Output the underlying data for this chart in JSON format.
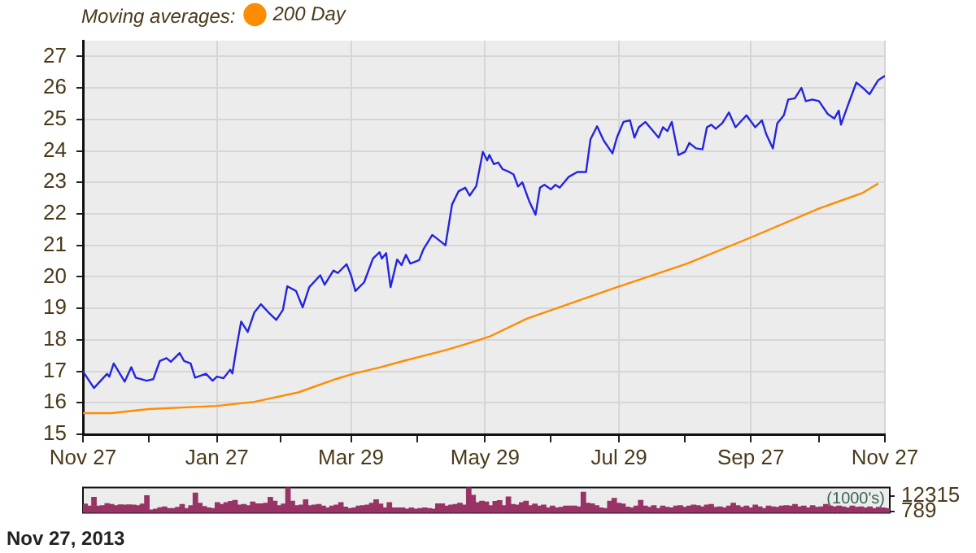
{
  "chart_data": [
    {
      "type": "line",
      "legend_title": "Moving averages:",
      "legend": "top left",
      "grid": true,
      "xlim": [
        "2012-11-27",
        "2013-11-27"
      ],
      "xticks": [
        {
          "value": "2012-11-27",
          "label": "Nov 27"
        },
        {
          "value": "2012-12-27",
          "label": null
        },
        {
          "value": "2013-01-27",
          "label": "Jan 27"
        },
        {
          "value": "2013-02-25",
          "label": null
        },
        {
          "value": "2013-03-29",
          "label": "Mar 29"
        },
        {
          "value": "2013-04-28",
          "label": null
        },
        {
          "value": "2013-05-29",
          "label": "May 29"
        },
        {
          "value": "2013-06-28",
          "label": null
        },
        {
          "value": "2013-07-29",
          "label": "Jul 29"
        },
        {
          "value": "2013-08-28",
          "label": null
        },
        {
          "value": "2013-09-27",
          "label": "Sep 27"
        },
        {
          "value": "2013-10-28",
          "label": null
        },
        {
          "value": "2013-11-27",
          "label": "Nov 27"
        }
      ],
      "ylim": [
        15,
        27.5
      ],
      "yticks": [
        15,
        16,
        17,
        18,
        19,
        20,
        21,
        22,
        23,
        24,
        25,
        26,
        27
      ],
      "series": [
        {
          "color": "#2424e0",
          "x": [
            "2012-11-27",
            "2012-12-02",
            "2012-12-08",
            "2012-12-09",
            "2012-12-11",
            "2012-12-16",
            "2012-12-19",
            "2012-12-21",
            "2012-12-26",
            "2012-12-29",
            "2013-01-01",
            "2013-01-04",
            "2013-01-06",
            "2013-01-10",
            "2013-01-12",
            "2013-01-15",
            "2013-01-17",
            "2013-01-22",
            "2013-01-25",
            "2013-01-27",
            "2013-01-30",
            "2013-02-02",
            "2013-02-03",
            "2013-02-05",
            "2013-02-07",
            "2013-02-10",
            "2013-02-13",
            "2013-02-16",
            "2013-02-20",
            "2013-02-23",
            "2013-02-26",
            "2013-02-28",
            "2013-03-04",
            "2013-03-07",
            "2013-03-10",
            "2013-03-15",
            "2013-03-17",
            "2013-03-21",
            "2013-03-23",
            "2013-03-27",
            "2013-03-29",
            "2013-03-31",
            "2013-04-04",
            "2013-04-08",
            "2013-04-11",
            "2013-04-12",
            "2013-04-14",
            "2013-04-16",
            "2013-04-19",
            "2013-04-21",
            "2013-04-23",
            "2013-04-25",
            "2013-04-29",
            "2013-05-01",
            "2013-05-05",
            "2013-05-11",
            "2013-05-14",
            "2013-05-17",
            "2013-05-20",
            "2013-05-22",
            "2013-05-25",
            "2013-05-28",
            "2013-05-30",
            "2013-05-31",
            "2013-06-02",
            "2013-06-04",
            "2013-06-06",
            "2013-06-09",
            "2013-06-11",
            "2013-06-13",
            "2013-06-15",
            "2013-06-18",
            "2013-06-21",
            "2013-06-23",
            "2013-06-25",
            "2013-06-28",
            "2013-06-30",
            "2013-07-02",
            "2013-07-06",
            "2013-07-10",
            "2013-07-14",
            "2013-07-16",
            "2013-07-19",
            "2013-07-22",
            "2013-07-26",
            "2013-07-28",
            "2013-07-31",
            "2013-08-03",
            "2013-08-05",
            "2013-08-07",
            "2013-08-10",
            "2013-08-13",
            "2013-08-16",
            "2013-08-18",
            "2013-08-20",
            "2013-08-22",
            "2013-08-25",
            "2013-08-28",
            "2013-08-30",
            "2013-09-02",
            "2013-09-05",
            "2013-09-07",
            "2013-09-09",
            "2013-09-11",
            "2013-09-14",
            "2013-09-17",
            "2013-09-20",
            "2013-09-25",
            "2013-09-29",
            "2013-10-02",
            "2013-10-04",
            "2013-10-07",
            "2013-10-09",
            "2013-10-12",
            "2013-10-14",
            "2013-10-17",
            "2013-10-20",
            "2013-10-22",
            "2013-10-25",
            "2013-10-28",
            "2013-11-01",
            "2013-11-04",
            "2013-11-06",
            "2013-11-07",
            "2013-11-10",
            "2013-11-14",
            "2013-11-17",
            "2013-11-20",
            "2013-11-24",
            "2013-11-27"
          ],
          "values": [
            17.0,
            16.47,
            16.92,
            16.83,
            17.25,
            16.67,
            17.13,
            16.8,
            16.7,
            16.75,
            17.33,
            17.42,
            17.3,
            17.58,
            17.33,
            17.25,
            16.8,
            16.92,
            16.7,
            16.83,
            16.78,
            17.05,
            16.93,
            17.8,
            18.58,
            18.25,
            18.87,
            19.13,
            18.83,
            18.63,
            18.95,
            19.7,
            19.55,
            19.03,
            19.67,
            20.05,
            19.75,
            20.2,
            20.12,
            20.4,
            20.05,
            19.55,
            19.83,
            20.58,
            20.78,
            20.58,
            20.75,
            19.67,
            20.55,
            20.37,
            20.7,
            20.42,
            20.53,
            20.88,
            21.33,
            21.0,
            22.3,
            22.72,
            22.83,
            22.58,
            22.88,
            23.97,
            23.7,
            23.87,
            23.58,
            23.63,
            23.42,
            23.33,
            23.25,
            22.87,
            23.0,
            22.42,
            21.97,
            22.83,
            22.92,
            22.78,
            22.92,
            22.83,
            23.17,
            23.33,
            23.33,
            24.37,
            24.78,
            24.33,
            23.92,
            24.42,
            24.92,
            24.97,
            24.42,
            24.75,
            24.92,
            24.67,
            24.42,
            24.75,
            24.63,
            24.92,
            23.87,
            23.97,
            24.25,
            24.08,
            24.05,
            24.75,
            24.83,
            24.7,
            24.88,
            25.22,
            24.75,
            25.13,
            24.75,
            24.97,
            24.53,
            24.08,
            24.87,
            25.13,
            25.63,
            25.67,
            26.0,
            25.58,
            25.63,
            25.58,
            25.17,
            25.03,
            25.28,
            24.83,
            25.42,
            26.17,
            26.0,
            25.8,
            26.25,
            26.38
          ]
        },
        {
          "name": "200 Day",
          "color": "#ff8c00",
          "x": [
            "2012-11-27",
            "2012-12-10",
            "2012-12-27",
            "2013-01-27",
            "2013-02-13",
            "2013-03-05",
            "2013-03-22",
            "2013-03-30",
            "2013-04-11",
            "2013-04-22",
            "2013-05-11",
            "2013-05-23",
            "2013-05-31",
            "2013-06-17",
            "2013-07-28",
            "2013-08-29",
            "2013-09-27",
            "2013-10-28",
            "2013-11-17",
            "2013-11-24"
          ],
          "values": [
            15.67,
            15.67,
            15.8,
            15.9,
            16.03,
            16.33,
            16.75,
            16.92,
            17.12,
            17.33,
            17.67,
            17.92,
            18.1,
            18.67,
            19.67,
            20.42,
            21.25,
            22.17,
            22.67,
            22.97
          ]
        }
      ]
    },
    {
      "type": "bar",
      "ylabel": "(1000's)",
      "tick_labels": "y",
      "color": "#993366",
      "ylim": [
        0,
        18300
      ],
      "yticks": [
        789,
        12315
      ],
      "annotations": [
        "Nov 27, 2013"
      ],
      "categories": [
        null,
        null,
        null,
        null,
        null,
        null,
        null,
        null,
        null,
        null,
        null,
        null,
        null,
        null,
        null,
        null,
        null,
        null,
        null,
        null,
        null,
        null,
        null,
        null,
        null,
        null,
        null,
        null,
        null,
        null,
        null,
        null,
        null,
        null,
        null,
        null,
        null,
        null,
        null,
        null,
        null,
        null,
        null,
        null,
        null,
        null,
        null,
        null,
        null,
        null,
        null,
        null,
        null,
        null,
        null,
        null,
        null,
        null,
        null,
        null,
        null,
        null,
        null,
        null,
        null,
        null,
        null,
        null,
        null,
        null,
        null,
        null,
        null,
        null,
        null,
        null,
        null,
        null,
        null,
        null,
        null,
        null,
        null,
        null,
        null,
        null,
        null,
        null,
        null,
        null,
        null,
        null,
        null,
        null,
        null,
        null,
        null,
        null,
        null,
        null,
        null,
        null,
        null,
        null,
        null,
        null,
        null,
        null,
        null,
        null,
        null,
        null,
        null,
        null,
        null,
        null,
        null,
        null,
        null,
        null,
        null,
        null,
        null,
        null,
        null,
        null,
        null,
        null,
        null,
        null,
        null,
        null,
        null,
        null,
        null,
        null,
        null,
        null,
        null,
        null,
        null,
        null,
        null,
        null,
        null,
        null,
        null,
        null,
        null,
        null,
        null,
        null,
        null,
        null,
        null,
        null,
        null,
        null,
        null,
        null,
        null,
        null,
        null,
        null,
        null,
        null,
        null,
        null,
        null,
        null,
        null,
        null,
        null,
        null,
        null,
        null,
        null,
        null,
        null,
        null,
        null,
        null,
        null
      ],
      "values": [
        6200,
        4700,
        11100,
        4700,
        5100,
        6600,
        6000,
        5100,
        5700,
        5500,
        5700,
        5500,
        5100,
        6200,
        12300,
        1900,
        2500,
        3600,
        4200,
        3000,
        3000,
        3800,
        6000,
        3000,
        5100,
        14300,
        6800,
        4500,
        3400,
        3000,
        7200,
        6000,
        7200,
        8100,
        8900,
        5500,
        6000,
        5100,
        7700,
        6400,
        6400,
        6800,
        11100,
        8300,
        5100,
        6200,
        18200,
        8300,
        5100,
        5500,
        9400,
        5100,
        5500,
        6000,
        4700,
        3400,
        4700,
        5500,
        7200,
        4000,
        3000,
        3400,
        4700,
        5100,
        5500,
        6800,
        9400,
        6200,
        3400,
        7200,
        3400,
        3400,
        3400,
        2500,
        3400,
        2500,
        3000,
        3400,
        3000,
        2500,
        6400,
        6400,
        4700,
        5500,
        6000,
        6800,
        5500,
        18200,
        12600,
        7200,
        8300,
        7700,
        5100,
        8100,
        8700,
        5100,
        11500,
        6000,
        5500,
        7200,
        8300,
        5100,
        6200,
        4700,
        5500,
        3400,
        4700,
        3400,
        3800,
        4700,
        4700,
        4700,
        4200,
        14900,
        6800,
        6400,
        5100,
        3400,
        3000,
        8300,
        10400,
        6800,
        6200,
        4000,
        3400,
        4700,
        8900,
        4700,
        3800,
        5100,
        3000,
        4700,
        3800,
        3400,
        4700,
        5100,
        3800,
        4700,
        5500,
        5100,
        4200,
        5500,
        6000,
        3800,
        4200,
        3400,
        4700,
        6800,
        5100,
        3800,
        4700,
        3400,
        5500,
        4200,
        3000,
        4700,
        4200,
        3800,
        4700,
        5100,
        4700,
        6000,
        4200,
        4700,
        3400,
        5100,
        3800,
        4200,
        6000,
        4700,
        4200,
        4700,
        4200,
        3400,
        4700,
        3800,
        4200,
        3400,
        4200,
        3000,
        3800,
        3400,
        3000
      ]
    }
  ]
}
